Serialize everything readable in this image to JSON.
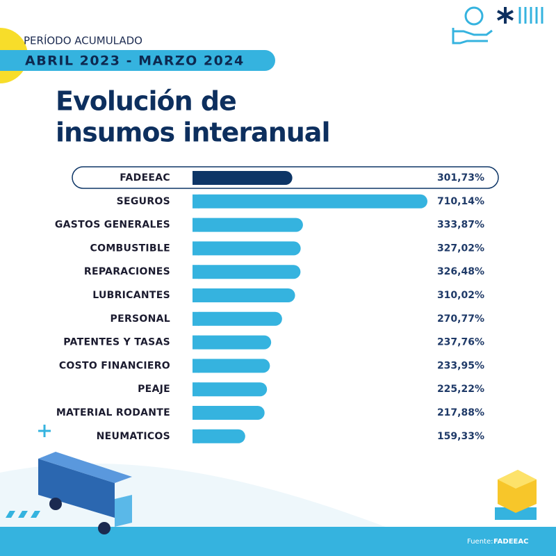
{
  "period_label": "PERÍODO ACUMULADO",
  "period": "ABRIL 2023 - MARZO 2024",
  "source_label": "Fuente:",
  "source": "FADEEAC",
  "chart_data": {
    "type": "bar",
    "orientation": "horizontal",
    "title_lines": [
      "Evolución de",
      "insumos interanual"
    ],
    "categories": [
      "FADEEAC",
      "SEGUROS",
      "GASTOS GENERALES",
      "COMBUSTIBLE",
      "REPARACIONES",
      "LUBRICANTES",
      "PERSONAL",
      "PATENTES Y TASAS",
      "COSTO FINANCIERO",
      "PEAJE",
      "MATERIAL RODANTE",
      "NEUMATICOS"
    ],
    "values": [
      301.73,
      710.14,
      333.87,
      327.02,
      326.48,
      310.02,
      270.77,
      237.76,
      233.95,
      225.22,
      217.88,
      159.33
    ],
    "value_labels": [
      "301,73%",
      "710,14%",
      "333,87%",
      "327,02%",
      "326,48%",
      "310,02%",
      "270,77%",
      "237,76%",
      "233,95%",
      "225,22%",
      "217,88%",
      "159,33%"
    ],
    "colors": [
      "#0d3566",
      "#35b3df",
      "#35b3df",
      "#35b3df",
      "#35b3df",
      "#35b3df",
      "#35b3df",
      "#35b3df",
      "#35b3df",
      "#35b3df",
      "#35b3df",
      "#35b3df"
    ],
    "highlight_index": 0
  }
}
